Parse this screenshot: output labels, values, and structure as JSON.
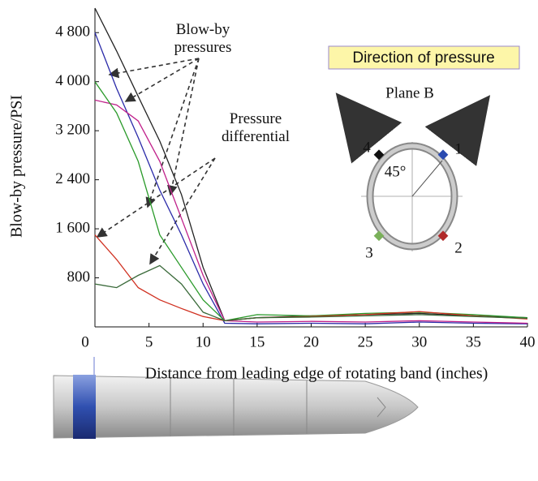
{
  "chart_data": {
    "type": "line",
    "xlabel": "Distance from leading edge of rotating band (inches)",
    "ylabel": "Blow-by pressure/PSI",
    "annotations": [
      "Blow-by pressures",
      "Pressure differential",
      "Direction of pressure",
      "Plane B",
      "45°",
      "1",
      "2",
      "3",
      "4"
    ],
    "x": [
      0,
      2,
      4,
      6,
      8,
      10,
      12,
      15,
      20,
      25,
      30,
      35,
      40
    ],
    "series": [
      {
        "color": "#222222",
        "values": [
          5200,
          4500,
          3760,
          3030,
          2160,
          970,
          100,
          150,
          180,
          200,
          220,
          180,
          150
        ]
      },
      {
        "color": "#2a2aa8",
        "values": [
          4800,
          3890,
          3090,
          2230,
          1500,
          700,
          60,
          50,
          60,
          50,
          80,
          60,
          50
        ]
      },
      {
        "color": "#c0208a",
        "values": [
          3700,
          3620,
          3360,
          2700,
          1770,
          840,
          100,
          80,
          90,
          80,
          100,
          80,
          60
        ]
      },
      {
        "color": "#2a9a2a",
        "values": [
          4000,
          3490,
          2700,
          1500,
          970,
          440,
          100,
          200,
          180,
          220,
          240,
          200,
          150
        ]
      },
      {
        "color": "#d03020",
        "values": [
          1500,
          1100,
          640,
          440,
          300,
          170,
          100,
          150,
          170,
          200,
          250,
          180,
          130
        ]
      },
      {
        "color": "#3a6a3a",
        "values": [
          700,
          640,
          840,
          1000,
          700,
          240,
          100,
          150,
          160,
          180,
          200,
          170,
          140
        ]
      }
    ],
    "xlim": [
      0,
      40
    ],
    "xticks": [
      0,
      5,
      10,
      15,
      20,
      25,
      30,
      35,
      40
    ],
    "ylim": [
      0,
      5200
    ],
    "yticks": [
      800,
      {
        "value": 1600,
        "label": "1 600"
      },
      {
        "value": 2400,
        "label": "2 400"
      },
      {
        "value": 3200,
        "label": "3 200"
      },
      {
        "value": 4000,
        "label": "4 000"
      },
      {
        "value": 4800,
        "label": "4 800"
      }
    ]
  }
}
